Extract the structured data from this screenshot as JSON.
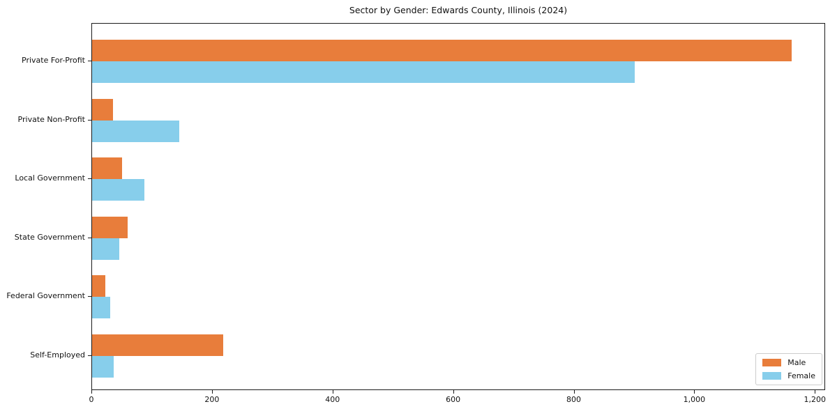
{
  "chart_data": {
    "type": "bar",
    "orientation": "horizontal",
    "title": "Sector by Gender: Edwards County, Illinois (2024)",
    "categories": [
      "Private For-Profit",
      "Private Non-Profit",
      "Local Government",
      "State Government",
      "Federal Government",
      "Self-Employed"
    ],
    "series": [
      {
        "name": "Male",
        "color": "#E87D3B",
        "values": [
          1160,
          35,
          50,
          59,
          22,
          218
        ]
      },
      {
        "name": "Female",
        "color": "#87CEEB",
        "values": [
          900,
          145,
          87,
          45,
          30,
          36
        ]
      }
    ],
    "x_ticks": [
      0,
      200,
      400,
      600,
      800,
      1000,
      1200
    ],
    "x_tick_labels": [
      "0",
      "200",
      "400",
      "600",
      "800",
      "1,000",
      "1,200"
    ],
    "xlim": [
      0,
      1217
    ],
    "ylabel": "",
    "xlabel": "",
    "grid": false,
    "legend": {
      "position": "lower right",
      "entries": [
        "Male",
        "Female"
      ]
    }
  }
}
